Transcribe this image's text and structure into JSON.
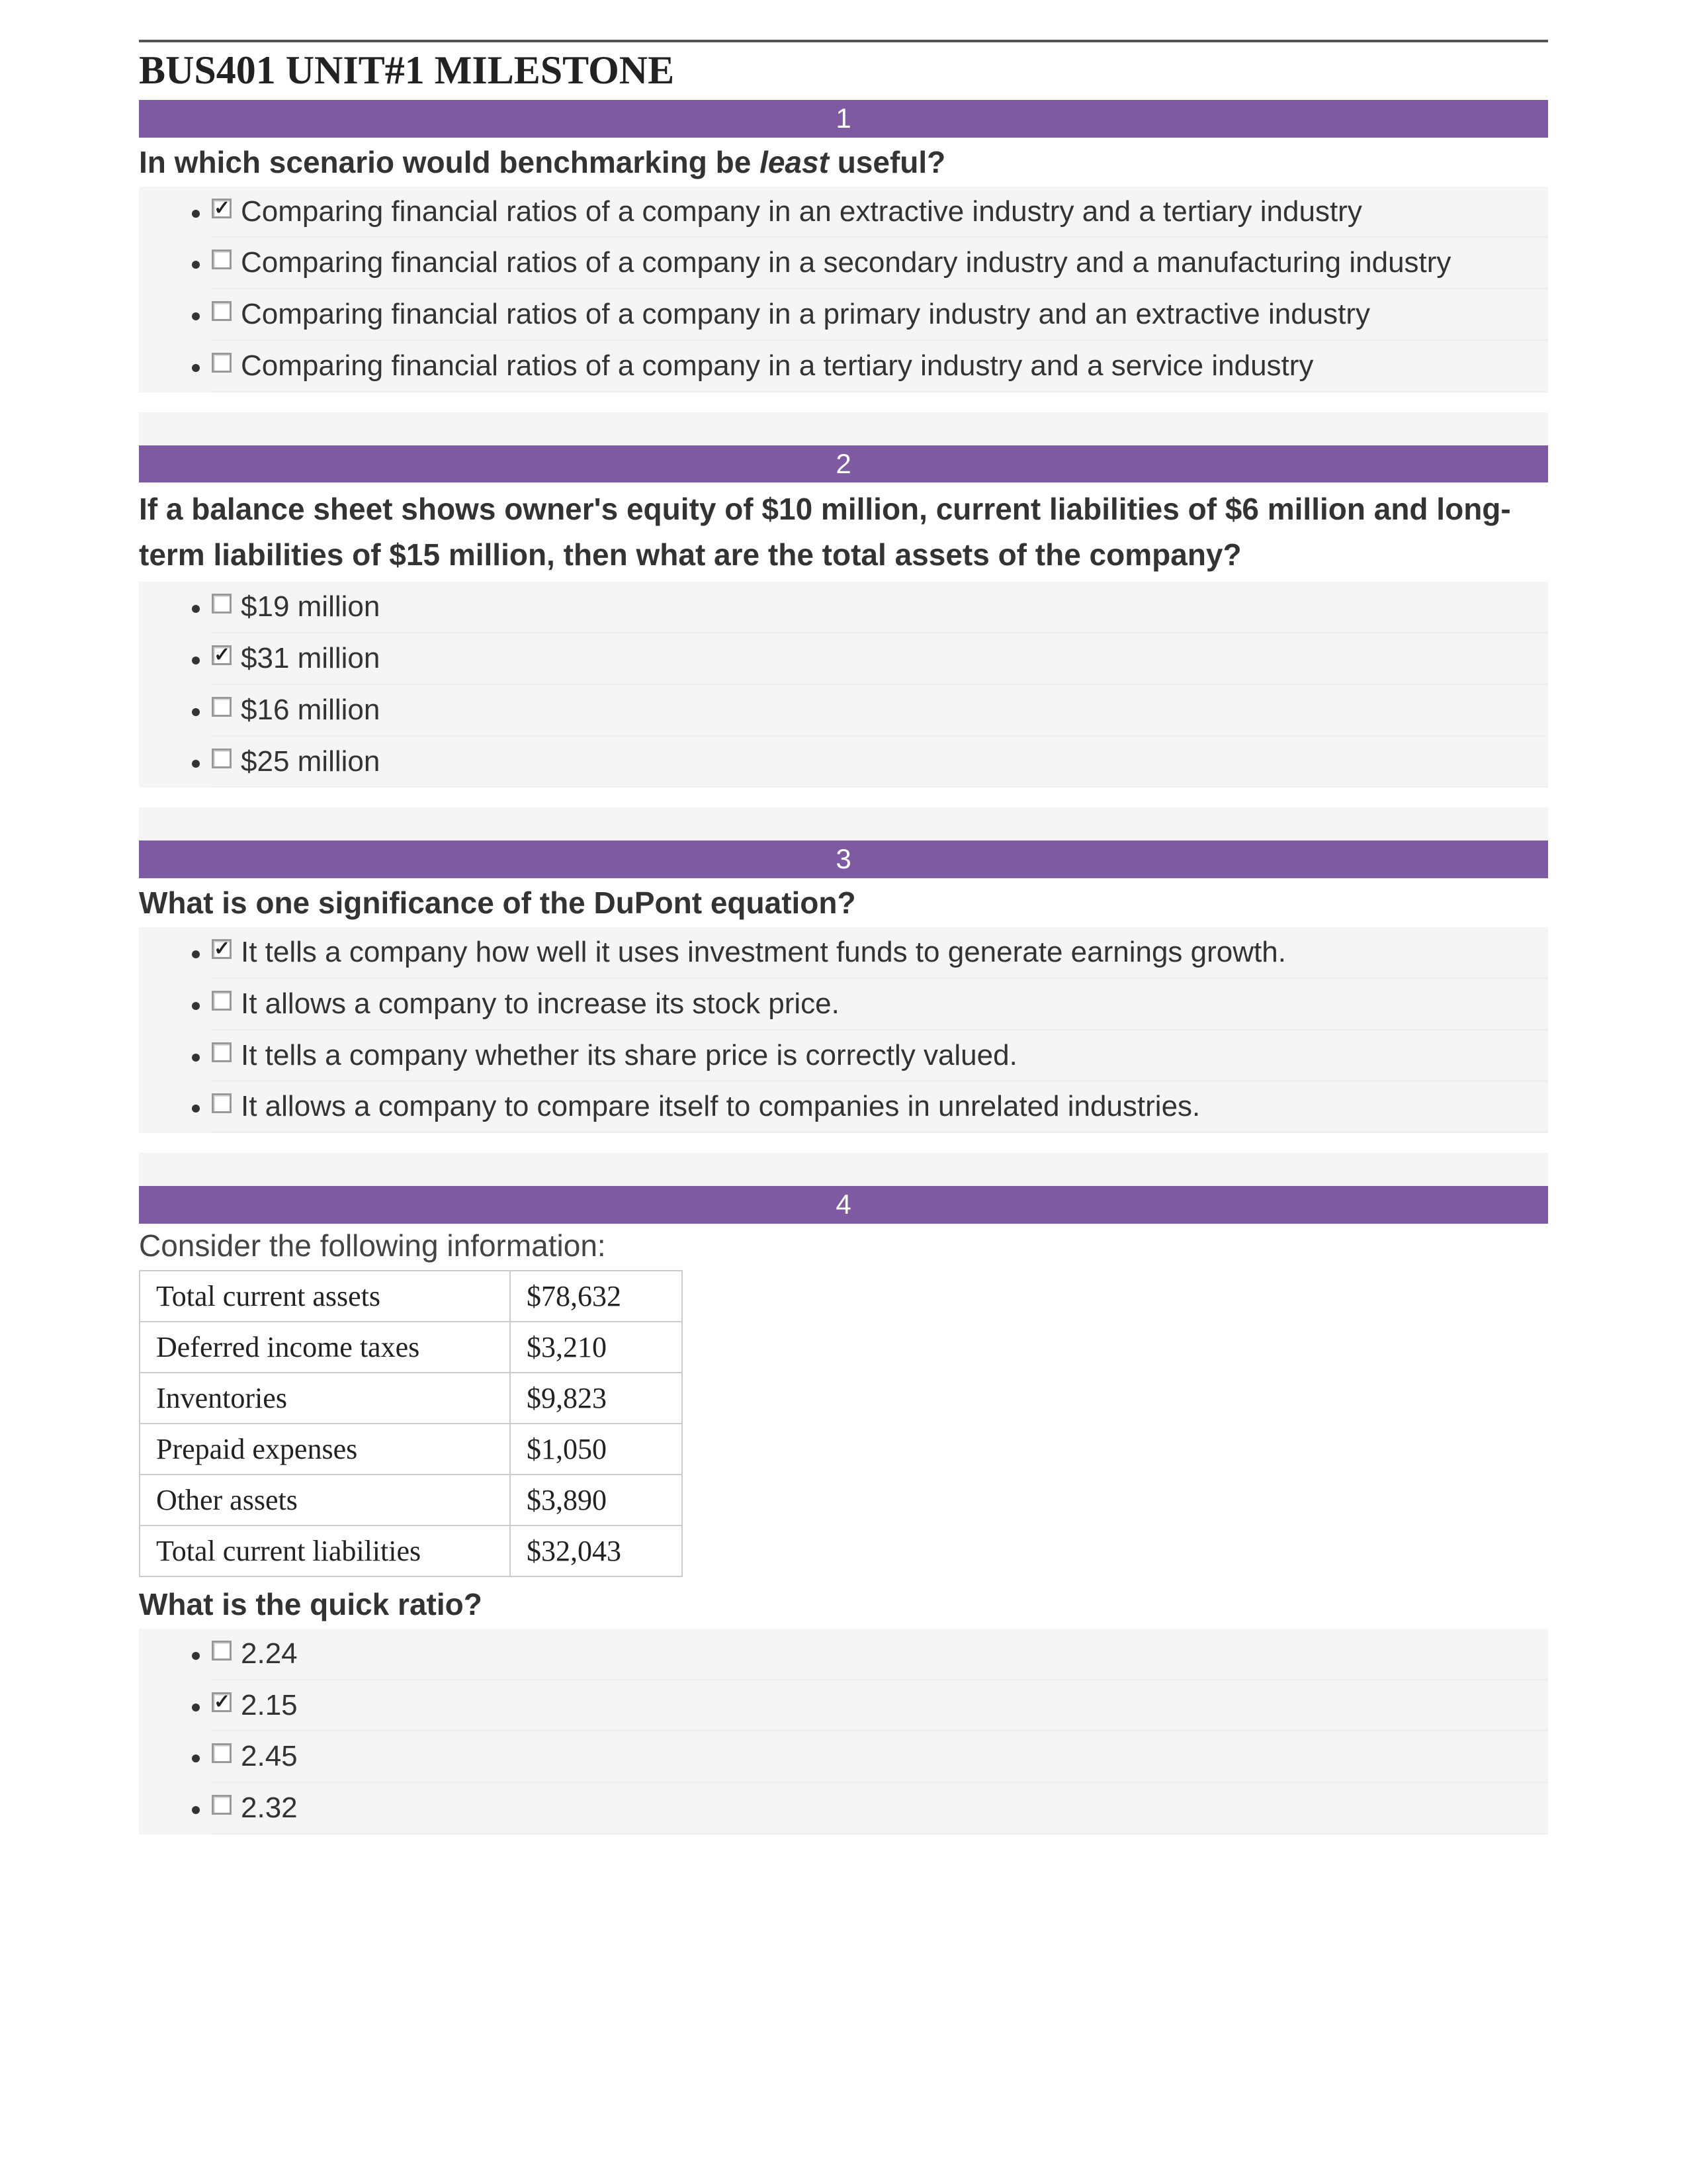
{
  "colors": {
    "banner_bg": "#7e5aa2",
    "banner_text": "#ffffff",
    "body_text": "#333333",
    "option_bg": "#f5f5f5",
    "rule": "#555555",
    "table_border": "#cccccc"
  },
  "doc": {
    "title": "BUS401 UNIT#1 MILESTONE"
  },
  "questions": [
    {
      "number": "1",
      "stem_html": "In which scenario would benchmarking be <em>least</em> useful?",
      "options": [
        {
          "checked": true,
          "text": "Comparing financial ratios of a company in an extractive industry and a tertiary industry"
        },
        {
          "checked": false,
          "text": "Comparing financial ratios of a company in a secondary industry and a manufacturing industry"
        },
        {
          "checked": false,
          "text": "Comparing financial ratios of a company in a primary industry and an extractive industry"
        },
        {
          "checked": false,
          "text": "Comparing financial ratios of a company in a tertiary industry and a service industry"
        }
      ]
    },
    {
      "number": "2",
      "stem_html": "If a balance sheet shows owner's equity of $10 million, current liabilities of $6 million and long-term liabilities of $15 million, then what are the total assets of the company?",
      "options": [
        {
          "checked": false,
          "text": "$19 million"
        },
        {
          "checked": true,
          "text": "$31 million"
        },
        {
          "checked": false,
          "text": "$16 million"
        },
        {
          "checked": false,
          "text": "$25 million"
        }
      ]
    },
    {
      "number": "3",
      "stem_html": "What is one significance of the DuPont equation?",
      "options": [
        {
          "checked": true,
          "text": "It tells a company how well it uses investment funds to generate earnings growth."
        },
        {
          "checked": false,
          "text": "It allows a company to increase its stock price."
        },
        {
          "checked": false,
          "text": "It tells a company whether its share price is correctly valued."
        },
        {
          "checked": false,
          "text": "It allows a company to compare itself to companies in unrelated industries."
        }
      ]
    },
    {
      "number": "4",
      "intro": "Consider the following information:",
      "table": {
        "rows": [
          {
            "label": "Total current assets",
            "value": "$78,632"
          },
          {
            "label": "Deferred income taxes",
            "value": "$3,210"
          },
          {
            "label": "Inventories",
            "value": "$9,823"
          },
          {
            "label": "Prepaid expenses",
            "value": "$1,050"
          },
          {
            "label": "Other assets",
            "value": "$3,890"
          },
          {
            "label": "Total current liabilities",
            "value": "$32,043"
          }
        ]
      },
      "stem_html": "What is the quick ratio?",
      "options": [
        {
          "checked": false,
          "text": "2.24"
        },
        {
          "checked": true,
          "text": "2.15"
        },
        {
          "checked": false,
          "text": "2.45"
        },
        {
          "checked": false,
          "text": "2.32"
        }
      ]
    }
  ]
}
